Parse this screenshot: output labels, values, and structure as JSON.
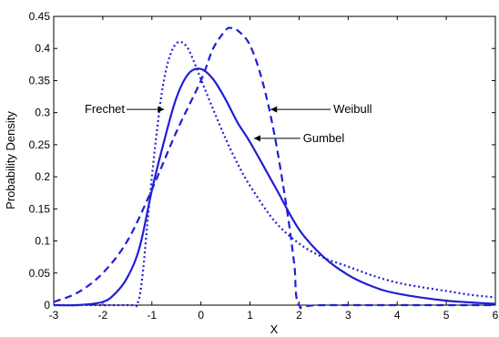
{
  "chart_data": {
    "type": "line",
    "xlabel": "X",
    "ylabel": "Probability Density",
    "xlim": [
      -3,
      6
    ],
    "ylim": [
      0,
      0.45
    ],
    "x_ticks": [
      "-3",
      "-2",
      "-1",
      "0",
      "1",
      "2",
      "3",
      "4",
      "5",
      "6"
    ],
    "y_ticks": [
      "0",
      "0.05",
      "0.1",
      "0.15",
      "0.2",
      "0.25",
      "0.3",
      "0.35",
      "0.4",
      "0.45"
    ],
    "grid": false,
    "line_color": "#1f1fd6",
    "series": [
      {
        "name": "Gumbel",
        "style": "solid",
        "x": [
          -3,
          -2.5,
          -2,
          -1.75,
          -1.5,
          -1.25,
          -1,
          -0.75,
          -0.5,
          -0.25,
          0,
          0.25,
          0.5,
          0.75,
          1,
          1.5,
          2,
          2.5,
          3,
          3.5,
          4,
          5,
          6
        ],
        "y": [
          0,
          0.0001,
          0.005,
          0.018,
          0.043,
          0.09,
          0.179,
          0.256,
          0.323,
          0.361,
          0.368,
          0.352,
          0.321,
          0.284,
          0.254,
          0.186,
          0.118,
          0.075,
          0.047,
          0.029,
          0.018,
          0.007,
          0.002
        ]
      },
      {
        "name": "Frechet",
        "style": "dotted",
        "x": [
          -3,
          -1.5,
          -1.3,
          -1.2,
          -1.1,
          -1.0,
          -0.9,
          -0.8,
          -0.7,
          -0.6,
          -0.5,
          -0.4,
          -0.3,
          -0.2,
          0,
          0.25,
          0.5,
          0.75,
          1,
          1.5,
          2,
          2.5,
          3,
          3.5,
          4,
          4.5,
          5,
          5.5,
          6
        ],
        "y": [
          0,
          0,
          0.002,
          0.04,
          0.12,
          0.2,
          0.27,
          0.33,
          0.37,
          0.395,
          0.408,
          0.41,
          0.404,
          0.39,
          0.352,
          0.305,
          0.26,
          0.22,
          0.186,
          0.131,
          0.096,
          0.074,
          0.06,
          0.046,
          0.035,
          0.028,
          0.022,
          0.016,
          0.012
        ]
      },
      {
        "name": "Weibull",
        "style": "dashed",
        "x": [
          -3,
          -2.5,
          -2,
          -1.5,
          -1,
          -0.5,
          0,
          0.25,
          0.5,
          0.6,
          0.75,
          1,
          1.25,
          1.5,
          1.75,
          1.9,
          2.0,
          2.5,
          6
        ],
        "y": [
          0.005,
          0.02,
          0.05,
          0.1,
          0.18,
          0.27,
          0.35,
          0.4,
          0.428,
          0.432,
          0.428,
          0.405,
          0.35,
          0.265,
          0.15,
          0.065,
          0.0,
          0.0,
          0.0
        ]
      }
    ],
    "annotations": [
      {
        "label": "Frechet",
        "target_x": -0.75,
        "target_y": 0.305,
        "text_x": -2.37,
        "text_y": 0.305
      },
      {
        "label": "Weibull",
        "target_x": 1.42,
        "target_y": 0.305,
        "text_x": 2.7,
        "text_y": 0.305
      },
      {
        "label": "Gumbel",
        "target_x": 1.08,
        "target_y": 0.26,
        "text_x": 2.08,
        "text_y": 0.26
      }
    ]
  }
}
